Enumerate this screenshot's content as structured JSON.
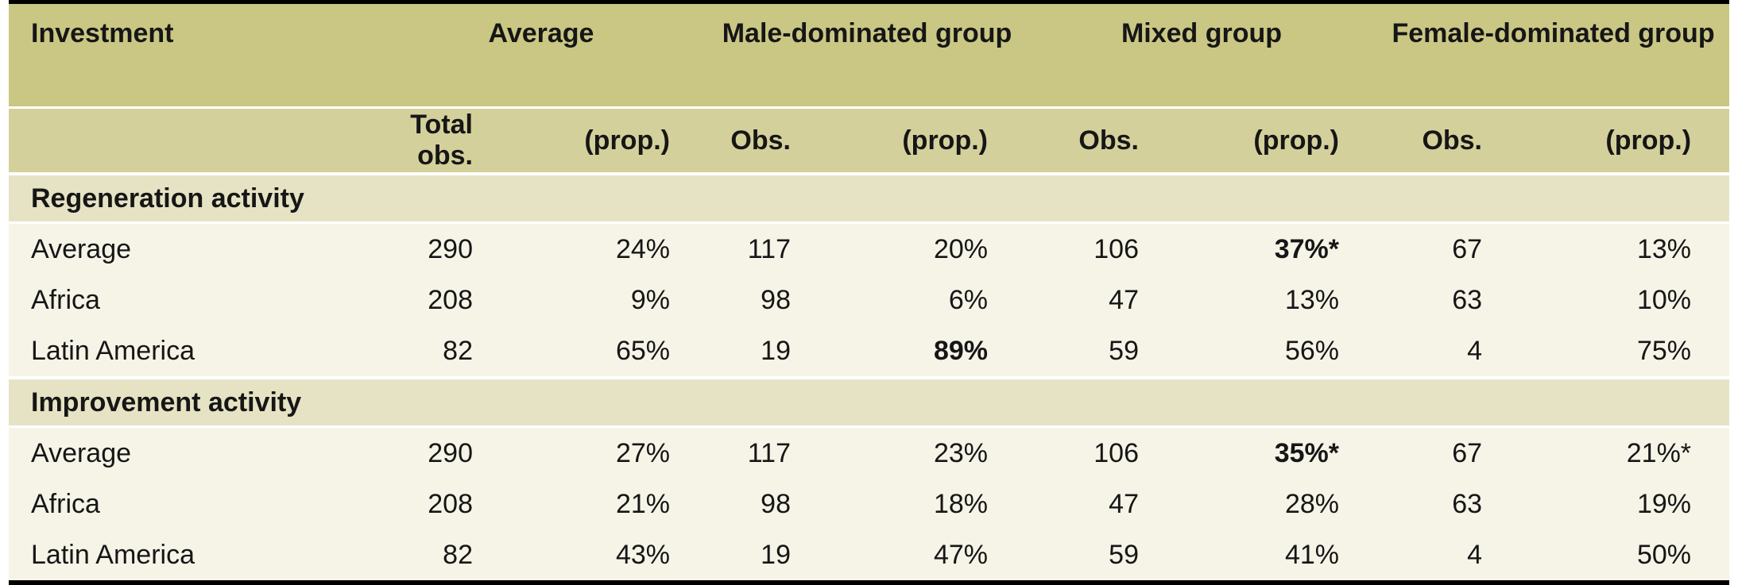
{
  "colors": {
    "group_header_band": "#c9c783",
    "sub_header_band": "#d3d09b",
    "section_band": "#e6e3c4",
    "data_band": "#f6f4e7",
    "text": "#161616",
    "top_bottom_rule": "#000000"
  },
  "table": {
    "header": {
      "investment": "Investment",
      "groups": [
        "Average",
        "Male-dominated group",
        "Mixed group",
        "Female-dominated group"
      ]
    },
    "subheader": [
      "Total obs.",
      "(prop.)",
      "Obs.",
      "(prop.)",
      "Obs.",
      "(prop.)",
      "Obs.",
      "(prop.)"
    ],
    "sections": [
      {
        "title": "Regeneration activity",
        "rows": [
          {
            "label": "Average",
            "values": [
              "290",
              "24%",
              "117",
              "20%",
              "106",
              "37%*",
              "67",
              "13%"
            ],
            "bold": [
              5
            ]
          },
          {
            "label": "Africa",
            "values": [
              "208",
              "9%",
              "98",
              "6%",
              "47",
              "13%",
              "63",
              "10%"
            ],
            "bold": []
          },
          {
            "label": "Latin America",
            "values": [
              "82",
              "65%",
              "19",
              "89%",
              "59",
              "56%",
              "4",
              "75%"
            ],
            "bold": [
              3
            ]
          }
        ]
      },
      {
        "title": "Improvement activity",
        "rows": [
          {
            "label": "Average",
            "values": [
              "290",
              "27%",
              "117",
              "23%",
              "106",
              "35%*",
              "67",
              "21%*"
            ],
            "bold": [
              5
            ]
          },
          {
            "label": "Africa",
            "values": [
              "208",
              "21%",
              "98",
              "18%",
              "47",
              "28%",
              "63",
              "19%"
            ],
            "bold": []
          },
          {
            "label": "Latin America",
            "values": [
              "82",
              "43%",
              "19",
              "47%",
              "59",
              "41%",
              "4",
              "50%"
            ],
            "bold": []
          }
        ]
      }
    ]
  }
}
